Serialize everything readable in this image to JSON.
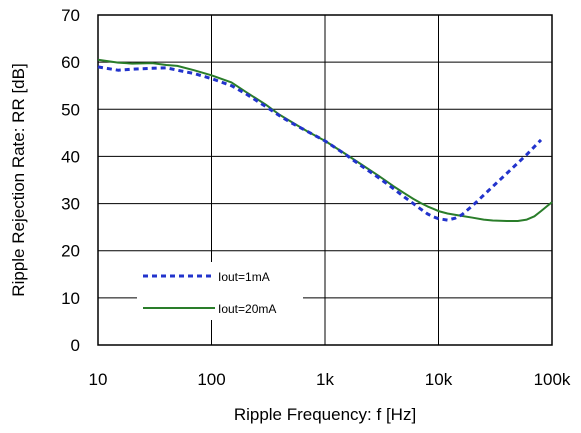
{
  "chart_data": {
    "type": "line",
    "title": "",
    "xlabel": "Ripple Frequency: f [Hz]",
    "ylabel": "Ripple Rejection Rate: RR [dB]",
    "xscale": "log",
    "xlim": [
      10,
      100000
    ],
    "ylim": [
      0,
      70
    ],
    "x_ticks": [
      10,
      100,
      1000,
      10000,
      100000
    ],
    "x_tick_labels": [
      "10",
      "100",
      "1k",
      "10k",
      "100k"
    ],
    "y_ticks": [
      0,
      10,
      20,
      30,
      40,
      50,
      60,
      70
    ],
    "y_tick_labels": [
      "0",
      "10",
      "20",
      "30",
      "40",
      "50",
      "60",
      "70"
    ],
    "grid": true,
    "legend": "bottom-left",
    "series": [
      {
        "name": "Iout=1mA",
        "style": "dotted",
        "color": "#2233cc",
        "x": [
          10,
          15,
          20,
          30,
          40,
          50,
          70,
          100,
          150,
          200,
          300,
          400,
          500,
          700,
          1000,
          1500,
          2000,
          3000,
          4000,
          5000,
          6000,
          7000,
          8000,
          9000,
          10000,
          12000,
          14000,
          16000,
          20000,
          30000,
          40000,
          60000,
          80000
        ],
        "y": [
          59,
          58.3,
          58.5,
          58.7,
          58.8,
          58.3,
          57.6,
          56.5,
          55,
          53.3,
          50.6,
          48.6,
          47.2,
          45.3,
          43.3,
          40.5,
          38.3,
          35.4,
          33.2,
          31.4,
          30,
          28.8,
          27.8,
          27.2,
          26.8,
          26.5,
          26.9,
          27.6,
          29.6,
          33.6,
          36.4,
          40.4,
          43.5
        ]
      },
      {
        "name": "Iout=20mA",
        "style": "solid",
        "color": "#2a7d2a",
        "x": [
          10,
          15,
          20,
          30,
          40,
          50,
          70,
          100,
          150,
          200,
          300,
          400,
          500,
          700,
          1000,
          1500,
          2000,
          3000,
          4000,
          5000,
          6000,
          7000,
          8000,
          9000,
          10000,
          12000,
          15000,
          20000,
          25000,
          30000,
          40000,
          50000,
          60000,
          70000,
          80000,
          90000,
          100000
        ],
        "y": [
          60.5,
          59.9,
          59.7,
          59.8,
          59.4,
          59.2,
          58.3,
          57.2,
          55.7,
          53.7,
          51,
          48.8,
          47.4,
          45.3,
          43.3,
          40.6,
          38.6,
          35.8,
          33.7,
          32.2,
          31,
          30.1,
          29.4,
          28.9,
          28.4,
          27.9,
          27.5,
          27,
          26.6,
          26.4,
          26.3,
          26.3,
          26.6,
          27.3,
          28.4,
          29.4,
          30.3
        ]
      }
    ]
  }
}
